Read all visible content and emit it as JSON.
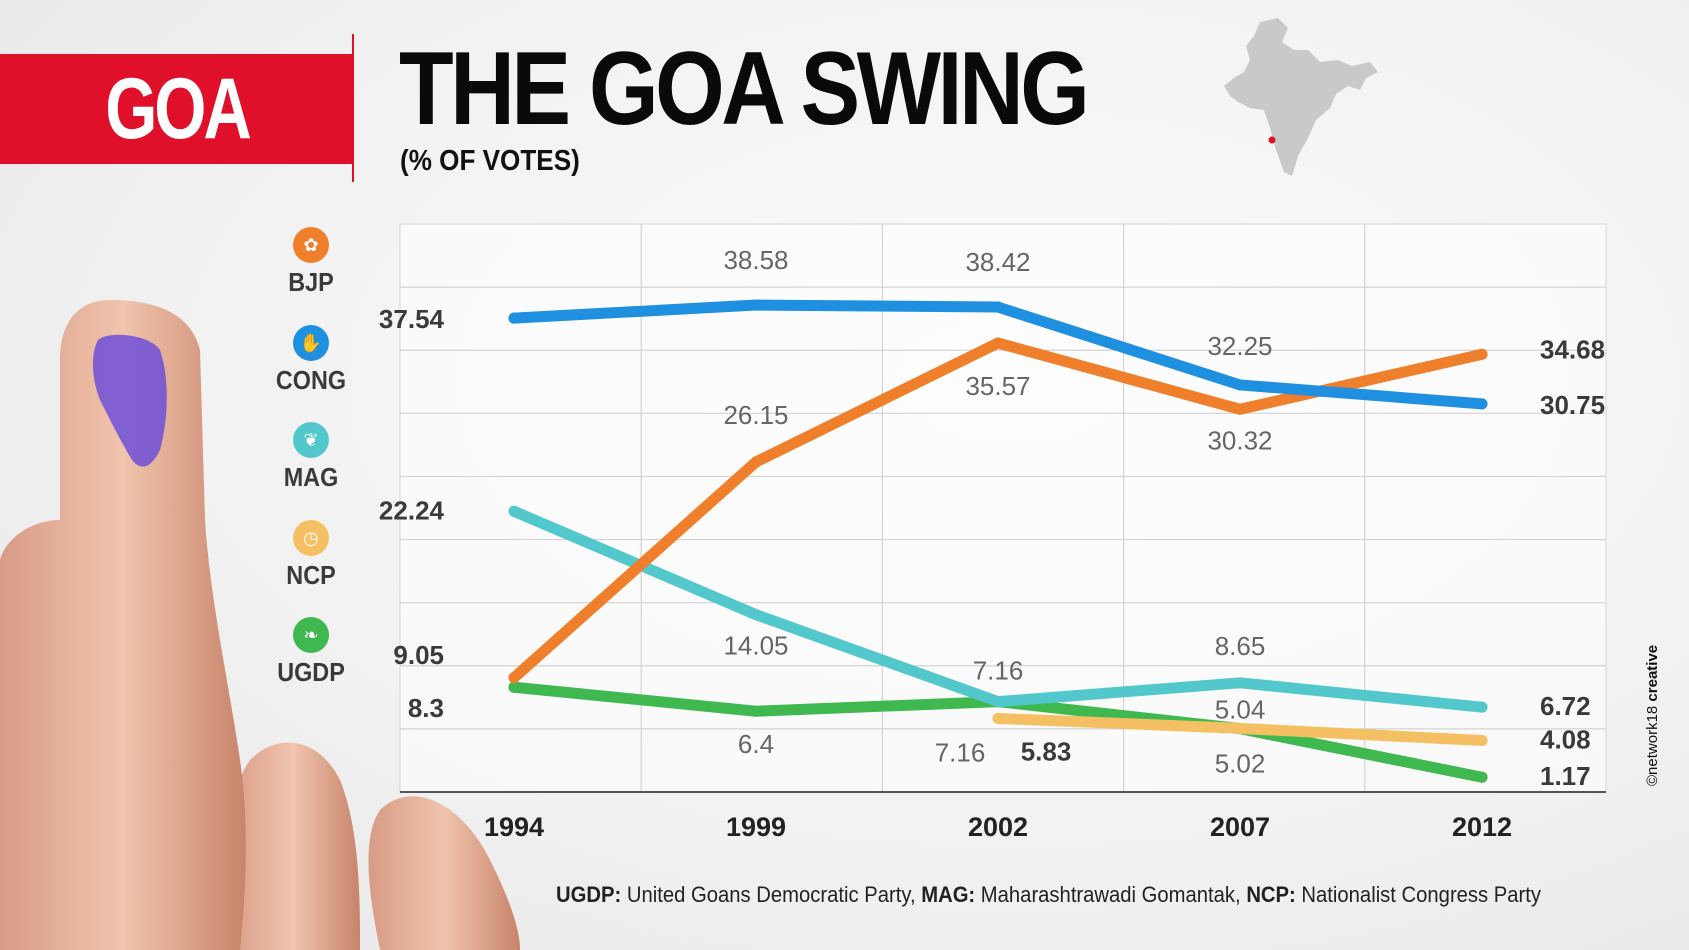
{
  "tag": {
    "label": "GOA",
    "color": "#e0102a"
  },
  "title": "THE GOA SWING",
  "subtitle": "(% OF VOTES)",
  "legend": [
    {
      "name": "BJP",
      "icon": "lotus-icon",
      "color": "#f07f2c"
    },
    {
      "name": "CONG",
      "icon": "hand-icon",
      "color": "#1f8fe0"
    },
    {
      "name": "MAG",
      "icon": "lion-icon",
      "color": "#53c8cc"
    },
    {
      "name": "NCP",
      "icon": "clock-icon",
      "color": "#f5c064"
    },
    {
      "name": "UGDP",
      "icon": "hands-icon",
      "color": "#3fb84f"
    }
  ],
  "footnote": {
    "ugdp_key": "UGDP:",
    "ugdp_text": "United Goans Democratic Party,",
    "mag_key": "MAG:",
    "mag_text": "Maharashtrawadi Gomantak,",
    "ncp_key": "NCP:",
    "ncp_text": "Nationalist Congress Party"
  },
  "credit": {
    "text": "©network18",
    "bold": "creative"
  },
  "chart_data": {
    "type": "line",
    "categories": [
      "1994",
      "1999",
      "2002",
      "2007",
      "2012"
    ],
    "ylim": [
      0,
      45
    ],
    "grid": true,
    "series": [
      {
        "name": "CONG",
        "color": "#1f8fe0",
        "x": [
          "1994",
          "1999",
          "2002",
          "2007",
          "2012"
        ],
        "values": [
          37.54,
          38.58,
          38.42,
          32.25,
          30.75
        ],
        "labels": [
          "37.54",
          "38.58",
          "38.42",
          "32.25",
          "30.75"
        ]
      },
      {
        "name": "BJP",
        "color": "#f07f2c",
        "x": [
          "1994",
          "1999",
          "2002",
          "2007",
          "2012"
        ],
        "values": [
          9.05,
          26.15,
          35.57,
          30.32,
          34.68
        ],
        "labels": [
          "9.05",
          "26.15",
          "35.57",
          "30.32",
          "34.68"
        ]
      },
      {
        "name": "MAG",
        "color": "#53c8cc",
        "x": [
          "1994",
          "1999",
          "2002",
          "2007",
          "2012"
        ],
        "values": [
          22.24,
          14.05,
          7.16,
          8.65,
          6.72
        ],
        "labels": [
          "22.24",
          "14.05",
          "7.16",
          "8.65",
          "6.72"
        ]
      },
      {
        "name": "NCP",
        "color": "#f5c064",
        "x": [
          "2002",
          "2007",
          "2012"
        ],
        "values": [
          5.83,
          5.04,
          4.08
        ],
        "labels": [
          "5.83",
          "5.04",
          "4.08"
        ]
      },
      {
        "name": "UGDP",
        "color": "#3fb84f",
        "x": [
          "1994",
          "1999",
          "2002",
          "2007",
          "2012"
        ],
        "values": [
          8.3,
          6.4,
          7.16,
          5.02,
          1.17
        ],
        "labels": [
          "8.3",
          "6.4",
          "7.16",
          "5.02",
          "1.17"
        ]
      }
    ]
  }
}
